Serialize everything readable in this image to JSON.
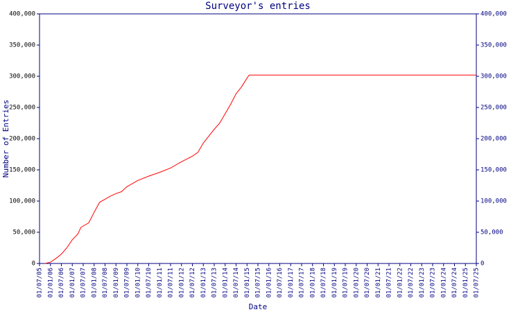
{
  "chart_data": {
    "type": "line",
    "title": "Surveyor's entries",
    "x_label": "Date",
    "y_label": "Number of Entries",
    "x": [
      2005.75,
      2006.0,
      2006.25,
      2006.5,
      2006.75,
      2007.0,
      2007.25,
      2007.4,
      2007.5,
      2007.75,
      2007.9,
      2008.0,
      2008.25,
      2008.5,
      2008.75,
      2009.0,
      2009.25,
      2009.5,
      2009.75,
      2010.0,
      2010.5,
      2011.0,
      2011.5,
      2012.0,
      2012.5,
      2012.75,
      2013.0,
      2013.5,
      2013.75,
      2014.0,
      2014.25,
      2014.5,
      2014.75,
      2015.0,
      2015.1,
      2025.5
    ],
    "series": [
      {
        "name": "Entries",
        "color": "#ff0000",
        "values": [
          0,
          2000,
          8000,
          15000,
          25000,
          38000,
          47000,
          58000,
          60000,
          65000,
          75000,
          82000,
          98000,
          103000,
          108000,
          112000,
          115000,
          123000,
          128000,
          133000,
          140000,
          146000,
          153000,
          163000,
          172000,
          178000,
          193000,
          215000,
          225000,
          240000,
          255000,
          272000,
          283000,
          297000,
          302000,
          302000
        ]
      }
    ],
    "xlim": [
      2005.5,
      2025.5
    ],
    "xticks": [
      {
        "value": 2005.5,
        "label": "01/07/05"
      },
      {
        "value": 2006.0,
        "label": "01/01/06"
      },
      {
        "value": 2006.5,
        "label": "01/07/06"
      },
      {
        "value": 2007.0,
        "label": "01/01/07"
      },
      {
        "value": 2007.5,
        "label": "01/07/07"
      },
      {
        "value": 2008.0,
        "label": "01/01/08"
      },
      {
        "value": 2008.5,
        "label": "01/07/08"
      },
      {
        "value": 2009.0,
        "label": "01/01/09"
      },
      {
        "value": 2009.5,
        "label": "01/07/09"
      },
      {
        "value": 2010.0,
        "label": "01/01/10"
      },
      {
        "value": 2010.5,
        "label": "01/07/10"
      },
      {
        "value": 2011.0,
        "label": "01/01/11"
      },
      {
        "value": 2011.5,
        "label": "01/07/11"
      },
      {
        "value": 2012.0,
        "label": "01/01/12"
      },
      {
        "value": 2012.5,
        "label": "01/07/12"
      },
      {
        "value": 2013.0,
        "label": "01/01/13"
      },
      {
        "value": 2013.5,
        "label": "01/07/13"
      },
      {
        "value": 2014.0,
        "label": "01/01/14"
      },
      {
        "value": 2014.5,
        "label": "01/07/14"
      },
      {
        "value": 2015.0,
        "label": "01/01/15"
      },
      {
        "value": 2015.5,
        "label": "01/07/15"
      },
      {
        "value": 2016.0,
        "label": "01/01/16"
      },
      {
        "value": 2016.5,
        "label": "01/07/16"
      },
      {
        "value": 2017.0,
        "label": "01/01/17"
      },
      {
        "value": 2017.5,
        "label": "01/07/17"
      },
      {
        "value": 2018.0,
        "label": "01/01/18"
      },
      {
        "value": 2018.5,
        "label": "01/07/18"
      },
      {
        "value": 2019.0,
        "label": "01/01/19"
      },
      {
        "value": 2019.5,
        "label": "01/07/19"
      },
      {
        "value": 2020.0,
        "label": "01/01/20"
      },
      {
        "value": 2020.5,
        "label": "01/07/20"
      },
      {
        "value": 2021.0,
        "label": "01/01/21"
      },
      {
        "value": 2021.5,
        "label": "01/07/21"
      },
      {
        "value": 2022.0,
        "label": "01/01/22"
      },
      {
        "value": 2022.5,
        "label": "01/07/22"
      },
      {
        "value": 2023.0,
        "label": "01/01/23"
      },
      {
        "value": 2023.5,
        "label": "01/07/23"
      },
      {
        "value": 2024.0,
        "label": "01/01/24"
      },
      {
        "value": 2024.5,
        "label": "01/07/24"
      },
      {
        "value": 2025.0,
        "label": "01/01/25"
      },
      {
        "value": 2025.5,
        "label": "01/07/25"
      }
    ],
    "ylim": [
      0,
      400000
    ],
    "yticks": [
      0,
      {
        "value": 50000,
        "label": "50,000"
      },
      {
        "value": 100000,
        "label": "100,000"
      },
      {
        "value": 150000,
        "label": "150,000"
      },
      {
        "value": 200000,
        "label": "200,000"
      },
      {
        "value": 250000,
        "label": "250,000"
      },
      {
        "value": 300000,
        "label": "300,000"
      },
      {
        "value": 350000,
        "label": "350,000"
      },
      {
        "value": 400000,
        "label": "400,000"
      }
    ],
    "axis_color": "#000080",
    "grid": false
  }
}
